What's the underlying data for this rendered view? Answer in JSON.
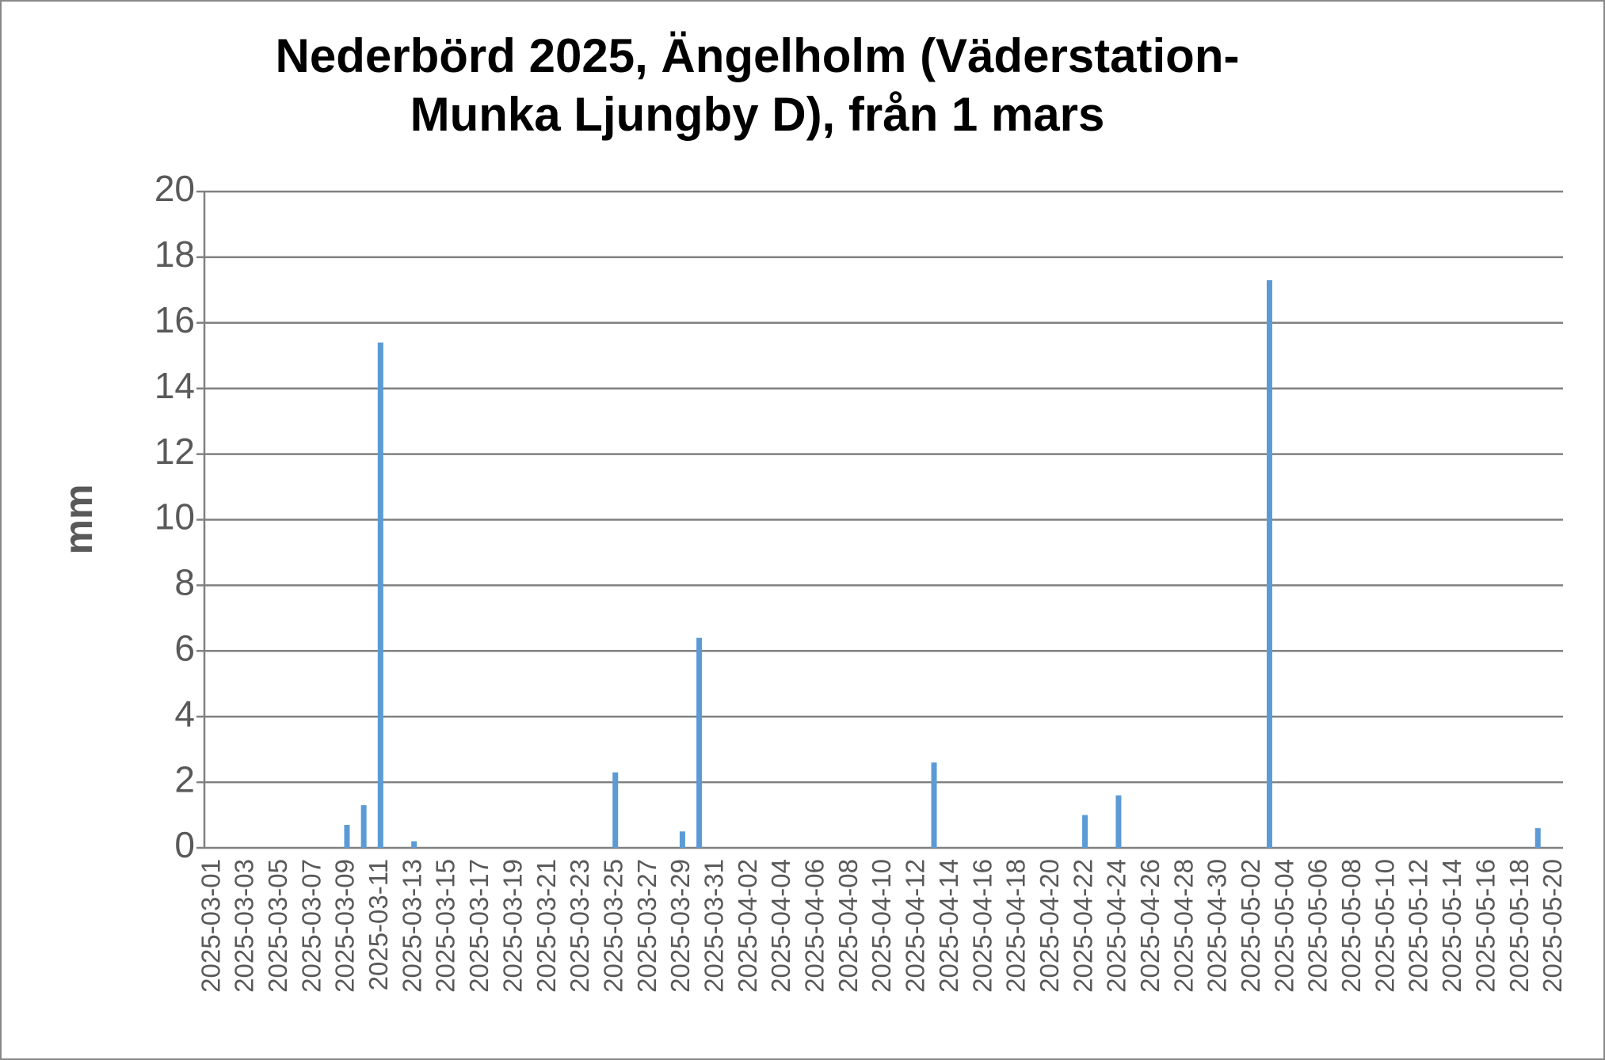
{
  "chart_data": {
    "type": "bar",
    "title": [
      "Nederbörd 2025, Ängelholm (Väderstation-",
      "Munka Ljungby D), från 1 mars"
    ],
    "y_label": "mm",
    "categories": [
      "2025-03-01",
      null,
      "2025-03-03",
      null,
      "2025-03-05",
      null,
      "2025-03-07",
      null,
      "2025-03-09",
      null,
      "2025-03-11",
      null,
      "2025-03-13",
      null,
      "2025-03-15",
      null,
      "2025-03-17",
      null,
      "2025-03-19",
      null,
      "2025-03-21",
      null,
      "2025-03-23",
      null,
      "2025-03-25",
      null,
      "2025-03-27",
      null,
      "2025-03-29",
      null,
      "2025-03-31",
      null,
      "2025-04-02",
      null,
      "2025-04-04",
      null,
      "2025-04-06",
      null,
      "2025-04-08",
      null,
      "2025-04-10",
      null,
      "2025-04-12",
      null,
      "2025-04-14",
      null,
      "2025-04-16",
      null,
      "2025-04-18",
      null,
      "2025-04-20",
      null,
      "2025-04-22",
      null,
      "2025-04-24",
      null,
      "2025-04-26",
      null,
      "2025-04-28",
      null,
      "2025-04-30",
      null,
      "2025-05-02",
      null,
      "2025-05-04",
      null,
      "2025-05-06",
      null,
      "2025-05-08",
      null,
      "2025-05-10",
      null,
      "2025-05-12",
      null,
      "2025-05-14",
      null,
      "2025-05-16",
      null,
      "2025-05-18",
      null,
      "2025-05-20"
    ],
    "values": [
      0,
      0,
      0,
      0,
      0,
      0,
      0,
      0,
      0.7,
      1.3,
      15.4,
      0,
      0.2,
      0,
      0,
      0,
      0,
      0,
      0,
      0,
      0,
      0,
      0,
      0,
      2.3,
      0,
      0,
      0,
      0.5,
      6.4,
      0,
      0,
      0,
      0,
      0,
      0,
      0,
      0,
      0,
      0,
      0,
      0,
      0,
      2.6,
      0,
      0,
      0,
      0,
      0,
      0,
      0,
      0,
      1.0,
      0,
      1.6,
      0,
      0,
      0,
      0,
      0,
      0,
      0,
      0,
      17.3,
      0,
      0,
      0,
      0,
      0,
      0,
      0,
      0,
      0,
      0,
      0,
      0,
      0,
      0,
      0,
      0.6,
      0
    ],
    "color": "#5b9bd5",
    "ylim": [
      0,
      20
    ],
    "yticks": [
      0,
      2,
      4,
      6,
      8,
      10,
      12,
      14,
      16,
      18,
      20
    ],
    "grid": true
  }
}
